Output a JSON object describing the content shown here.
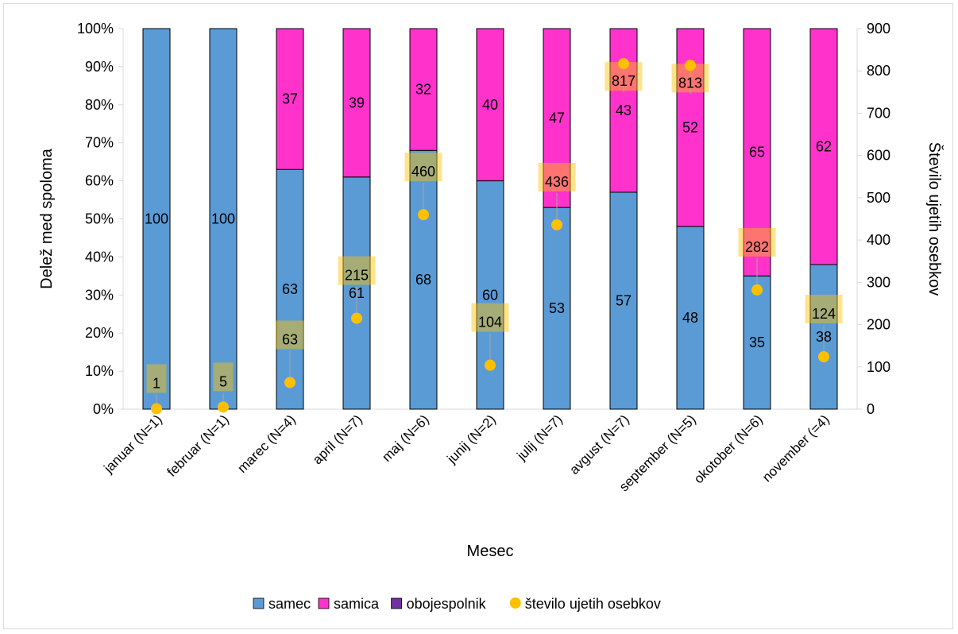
{
  "chart_data": {
    "type": "bar",
    "stacked": "percent",
    "categories": [
      "januar (N=1)",
      "februar (N=1)",
      "marec (N=4)",
      "april (N=7)",
      "maj (N=6)",
      "junij (N=2)",
      "julij (N=7)",
      "avgust (N=7)",
      "september (N=5)",
      "okotober (N=6)",
      "november (=4)"
    ],
    "series": [
      {
        "name": "samec",
        "color": "#5b9bd5",
        "values": [
          100,
          100,
          63,
          61,
          68,
          60,
          53,
          57,
          48,
          35,
          38
        ],
        "labels": [
          "100",
          "100",
          "63",
          "61",
          "68",
          "60",
          "53",
          "57",
          "48",
          "35",
          "38"
        ]
      },
      {
        "name": "samica",
        "color": "#ff33cc",
        "values": [
          0,
          0,
          37,
          39,
          32,
          40,
          47,
          43,
          52,
          65,
          62
        ],
        "labels": [
          "",
          "",
          "37",
          "39",
          "32",
          "40",
          "47",
          "43",
          "52",
          "65",
          "62"
        ]
      },
      {
        "name": "obojespolnik",
        "color": "#7030a0",
        "values": [
          0,
          0,
          0,
          0,
          0,
          0,
          0,
          0,
          0,
          0,
          0
        ]
      }
    ],
    "secondary_series": {
      "name": "število ujetih osebkov",
      "type": "scatter",
      "color": "#ffc000",
      "values": [
        1,
        5,
        63,
        215,
        460,
        104,
        436,
        817,
        813,
        282,
        124
      ],
      "labels": [
        "1",
        "5",
        "63",
        "215",
        "460",
        "104",
        "436",
        "817",
        "813",
        "282",
        "124"
      ]
    },
    "xlabel": "Mesec",
    "ylabel": "Delež med spoloma",
    "ylabel_right": "Število ujetih osebkov",
    "ylim": [
      0,
      100
    ],
    "ylim_right": [
      0,
      900
    ],
    "y_ticks": [
      "0%",
      "10%",
      "20%",
      "30%",
      "40%",
      "50%",
      "60%",
      "70%",
      "80%",
      "90%",
      "100%"
    ],
    "y_ticks_right": [
      "0",
      "100",
      "200",
      "300",
      "400",
      "500",
      "600",
      "700",
      "800",
      "900"
    ],
    "legend_position": "bottom",
    "grid": false
  }
}
